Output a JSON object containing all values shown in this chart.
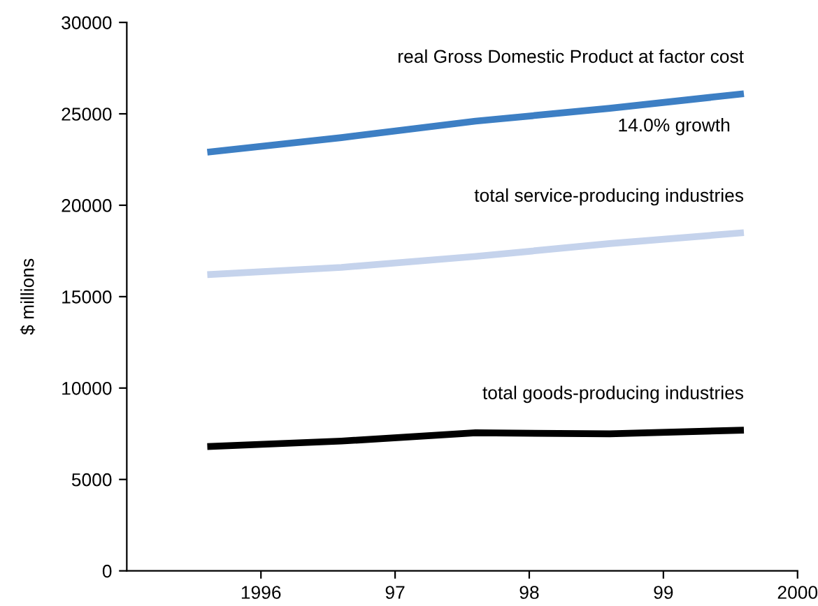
{
  "chart_data": {
    "type": "line",
    "ylabel": "$ millions",
    "x": [
      1995.6,
      1996.6,
      1997.6,
      1998.6,
      1999.6
    ],
    "series": [
      {
        "name": "real Gross Domestic Product at factor cost",
        "color": "#3d7fc4",
        "values": [
          22900,
          23700,
          24600,
          25300,
          26100
        ]
      },
      {
        "name": "total service-producing industries",
        "color": "#c5d3ec",
        "values": [
          16200,
          16600,
          17200,
          17900,
          18500
        ]
      },
      {
        "name": "total goods-producing industries",
        "color": "#000000",
        "values": [
          6800,
          7100,
          7550,
          7500,
          7700
        ]
      }
    ],
    "annotations": [
      "14.0% growth"
    ],
    "xlim": [
      1995,
      2000
    ],
    "xticks": [
      {
        "value": 1996,
        "label": "1996"
      },
      {
        "value": 1997,
        "label": "97"
      },
      {
        "value": 1998,
        "label": "98"
      },
      {
        "value": 1999,
        "label": "99"
      },
      {
        "value": 2000,
        "label": "2000"
      }
    ],
    "ylim": [
      0,
      30000
    ],
    "yticks": [
      0,
      5000,
      10000,
      15000,
      20000,
      25000,
      30000
    ],
    "grid": false,
    "legend": false,
    "marker": "none",
    "line_style": "solid"
  }
}
